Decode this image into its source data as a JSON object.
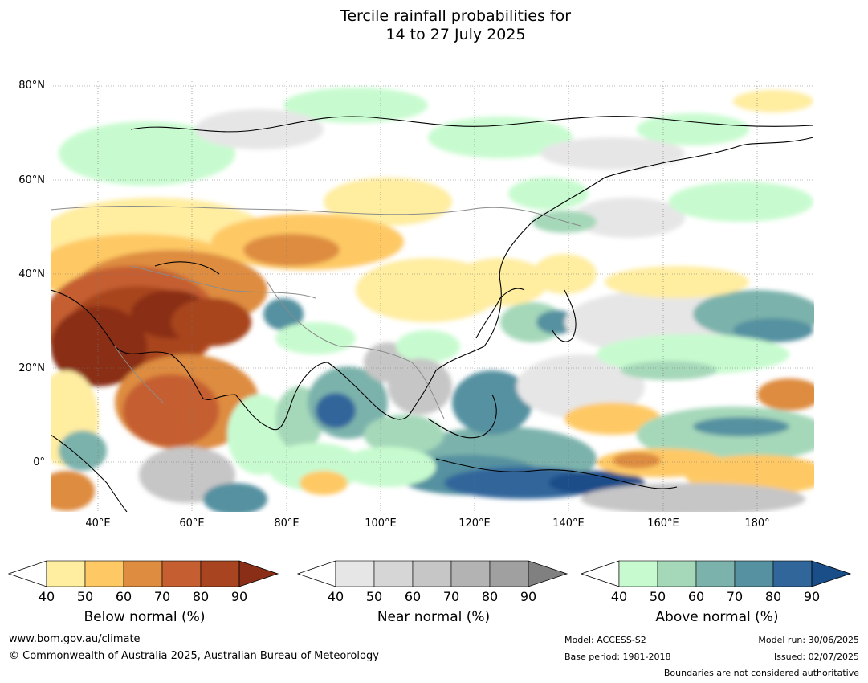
{
  "title": {
    "line1": "Tercile rainfall probabilities for",
    "line2": "14 to 27 July 2025"
  },
  "map": {
    "lat_labels": [
      "80°N",
      "60°N",
      "40°N",
      "20°N",
      "0°"
    ],
    "lon_labels": [
      "40°E",
      "60°E",
      "80°E",
      "100°E",
      "120°E",
      "140°E",
      "160°E",
      "180°"
    ]
  },
  "legends": [
    {
      "name": "below",
      "caption": "Below normal (%)",
      "ticks": [
        "40",
        "50",
        "60",
        "70",
        "80",
        "90"
      ],
      "colors": [
        "#ffeda0",
        "#fec965",
        "#de8c40",
        "#c55e30",
        "#a8441f",
        "#8a2e18"
      ]
    },
    {
      "name": "near",
      "caption": "Near normal (%)",
      "ticks": [
        "40",
        "50",
        "60",
        "70",
        "80",
        "90"
      ],
      "colors": [
        "#e6e6e6",
        "#d6d6d6",
        "#c6c6c6",
        "#b3b3b3",
        "#a0a0a0",
        "#808080"
      ]
    },
    {
      "name": "above",
      "caption": "Above normal (%)",
      "ticks": [
        "40",
        "50",
        "60",
        "70",
        "80",
        "90"
      ],
      "colors": [
        "#c7fbcf",
        "#a5d8b9",
        "#7cb2ac",
        "#5591a0",
        "#31669b",
        "#1a4e89"
      ]
    }
  ],
  "footer": {
    "website": "www.bom.gov.au/climate",
    "copyright": "© Commonwealth of Australia 2025, Australian Bureau of Meteorology",
    "model": "Model: ACCESS-S2",
    "base_period": "Base period: 1981-2018",
    "model_run": "Model run: 30/06/2025",
    "issued": "Issued: 02/07/2025",
    "disclaimer": "Boundaries are not considered authoritative"
  }
}
